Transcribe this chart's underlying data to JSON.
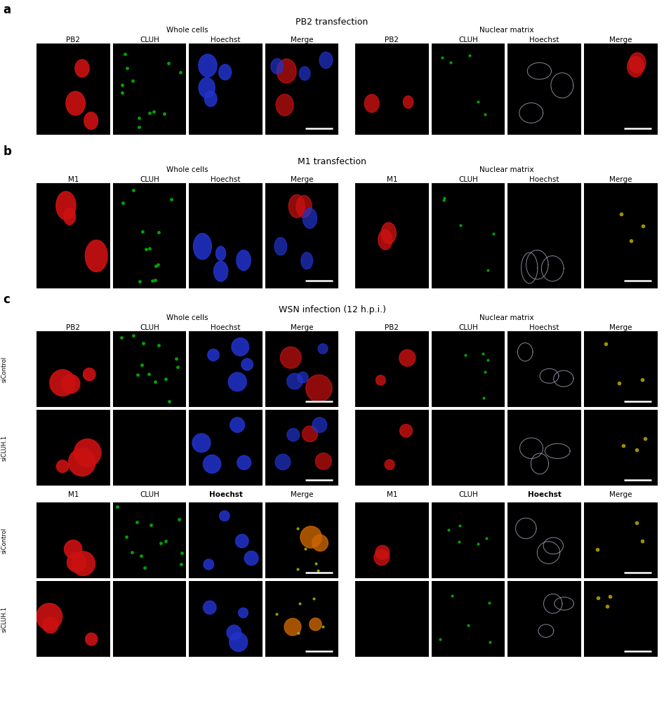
{
  "title_a": "PB2 transfection",
  "title_b": "M1 transfection",
  "title_c": "WSN infection (12 h.p.i.)",
  "label_whole": "Whole cells",
  "label_nuclear": "Nuclear matrix",
  "col_labels_pb2": [
    "PB2",
    "CLUH",
    "Hoechst",
    "Merge",
    "PB2",
    "CLUH",
    "Hoechst",
    "Merge"
  ],
  "col_labels_m1": [
    "M1",
    "CLUH",
    "Hoechst",
    "Merge",
    "M1",
    "CLUH",
    "Hoechst",
    "Merge"
  ],
  "bg_color": "#ffffff",
  "panel_bg": "#000000",
  "line_color": "#aaaaaa",
  "text_color": "#000000",
  "label_fontsize": 7.5,
  "title_fontsize": 9,
  "section_label_fontsize": 12
}
